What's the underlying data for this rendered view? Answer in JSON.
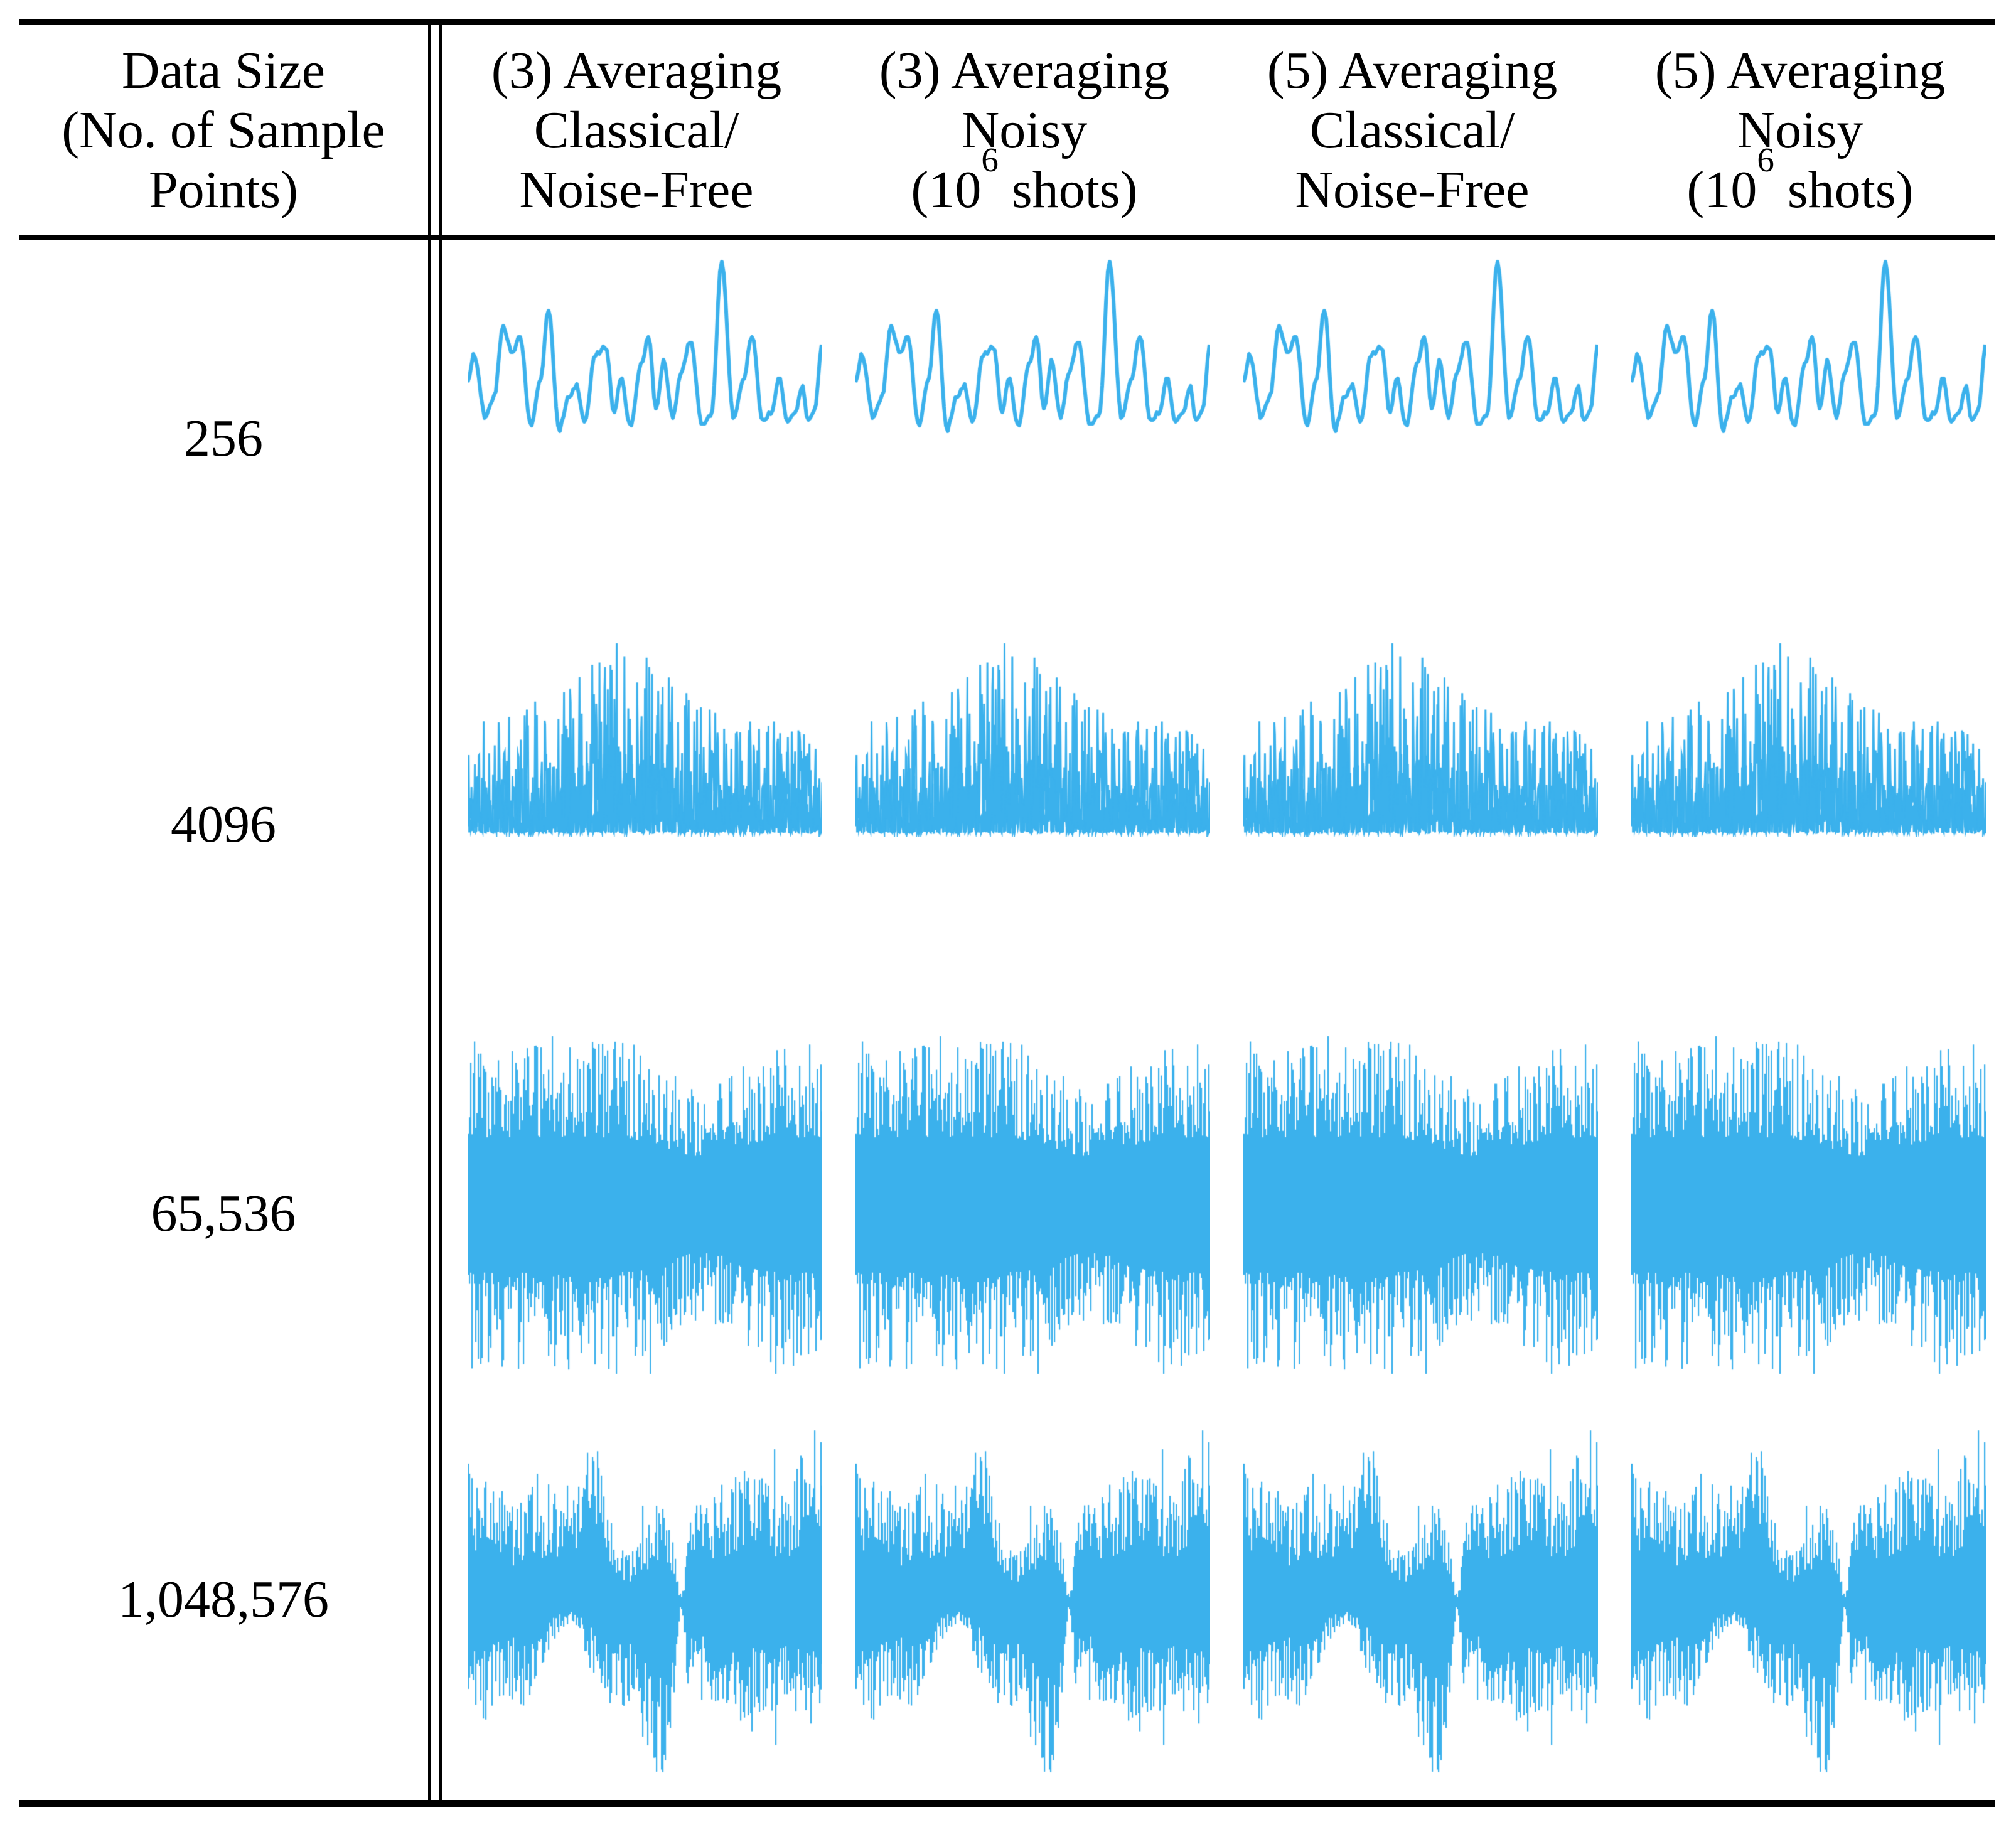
{
  "waveform_color": "#3BB1EC",
  "rule_color": "#000000",
  "header": {
    "col1_lines": [
      "Data Size",
      "(No. of Sample",
      "Points)"
    ],
    "plot_columns": [
      {
        "lines": [
          [
            "(3) Averaging"
          ],
          [
            "Classical/"
          ],
          [
            "Noise-Free"
          ]
        ]
      },
      {
        "lines": [
          [
            "(3) Averaging"
          ],
          [
            "Noisy"
          ],
          [
            "(10",
            {
              "sup": "6"
            },
            " shots)"
          ]
        ]
      },
      {
        "lines": [
          [
            "(5) Averaging"
          ],
          [
            "Classical/"
          ],
          [
            "Noise-Free"
          ]
        ]
      },
      {
        "lines": [
          [
            "(5) Averaging"
          ],
          [
            "Noisy"
          ],
          [
            "(10",
            {
              "sup": "6"
            },
            " shots)"
          ]
        ]
      }
    ]
  },
  "rows": [
    {
      "data_size": "256",
      "wave": {
        "type": "smooth-line",
        "seed": 5
      }
    },
    {
      "data_size": "4096",
      "wave": {
        "type": "upward-spikes",
        "seed": 11
      }
    },
    {
      "data_size": "65,536",
      "wave": {
        "type": "dense-band",
        "seed": 23
      }
    },
    {
      "data_size": "1,048,576",
      "wave": {
        "type": "dense-band-modulated",
        "seed": 41
      }
    }
  ]
}
